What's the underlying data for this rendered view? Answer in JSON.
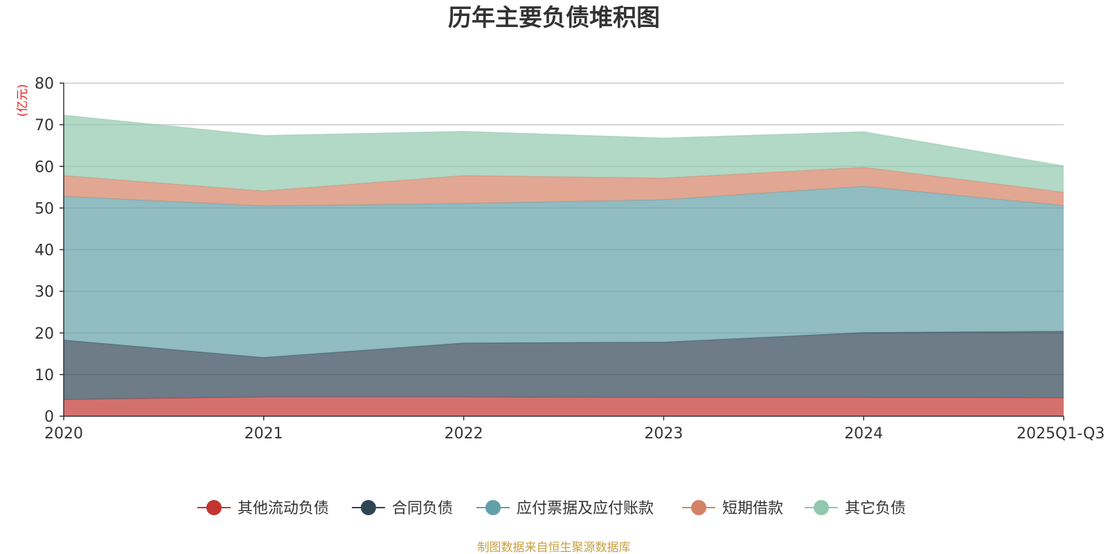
{
  "chart_data": {
    "type": "area",
    "stacked": true,
    "title": "历年主要负债堆积图",
    "unit_label": "(亿元)",
    "unit_color": "#e02020",
    "categories": [
      "2020",
      "2021",
      "2022",
      "2023",
      "2024",
      "2025Q1-Q3"
    ],
    "ylim": [
      0,
      80
    ],
    "yticks": [
      0,
      10,
      20,
      30,
      40,
      50,
      60,
      70,
      80
    ],
    "grid": true,
    "legend_position": "bottom",
    "series": [
      {
        "name": "其他流动负债",
        "color": "#c23531",
        "values": [
          4.0,
          4.6,
          4.6,
          4.5,
          4.5,
          4.4
        ]
      },
      {
        "name": "合同负债",
        "color": "#2f4554",
        "values": [
          14.3,
          9.5,
          13.0,
          13.3,
          15.6,
          16.0
        ]
      },
      {
        "name": "应付票据及应付账款",
        "color": "#61a0a8",
        "values": [
          34.5,
          36.4,
          33.5,
          34.2,
          35.1,
          30.2
        ]
      },
      {
        "name": "短期借款",
        "color": "#d48265",
        "values": [
          5.0,
          3.6,
          6.7,
          5.2,
          4.6,
          3.2
        ]
      },
      {
        "name": "其它负债",
        "color": "#91c7ae",
        "values": [
          14.5,
          13.3,
          10.6,
          9.6,
          8.5,
          6.3
        ]
      }
    ]
  },
  "footer": {
    "source": "制图数据来自恒生聚源数据库",
    "source_color": "#c8a040"
  }
}
